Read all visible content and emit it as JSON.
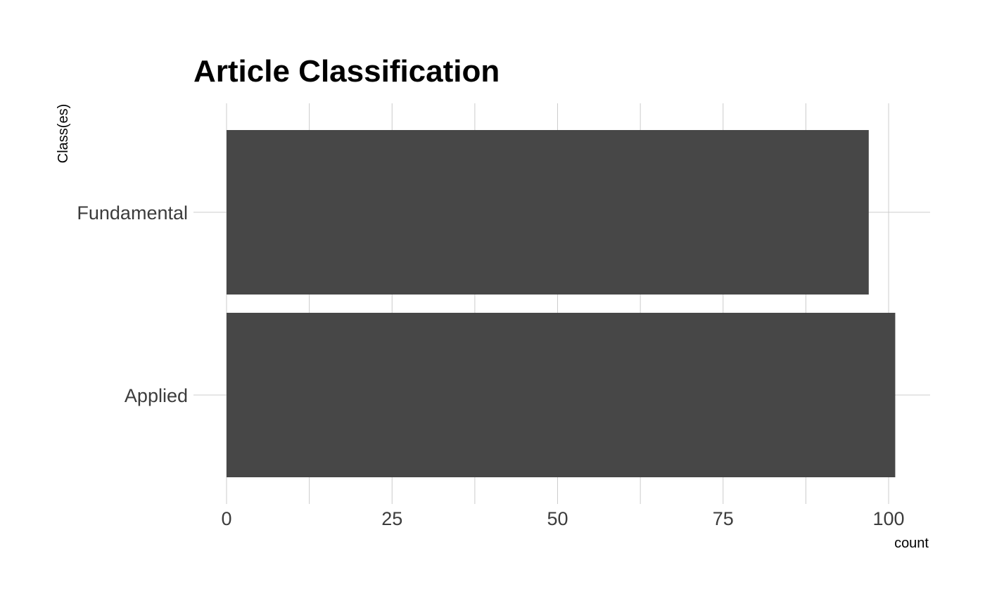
{
  "chart_data": {
    "type": "bar",
    "orientation": "horizontal",
    "title": "Article Classification",
    "xlabel": "count",
    "ylabel": "Class(es)",
    "categories": [
      "Fundamental",
      "Applied"
    ],
    "values": [
      97,
      101
    ],
    "xlim": [
      0,
      106
    ],
    "x_ticks": [
      0,
      25,
      50,
      75,
      100
    ],
    "grid": true,
    "legend": "none",
    "bar_color": "#474747"
  }
}
